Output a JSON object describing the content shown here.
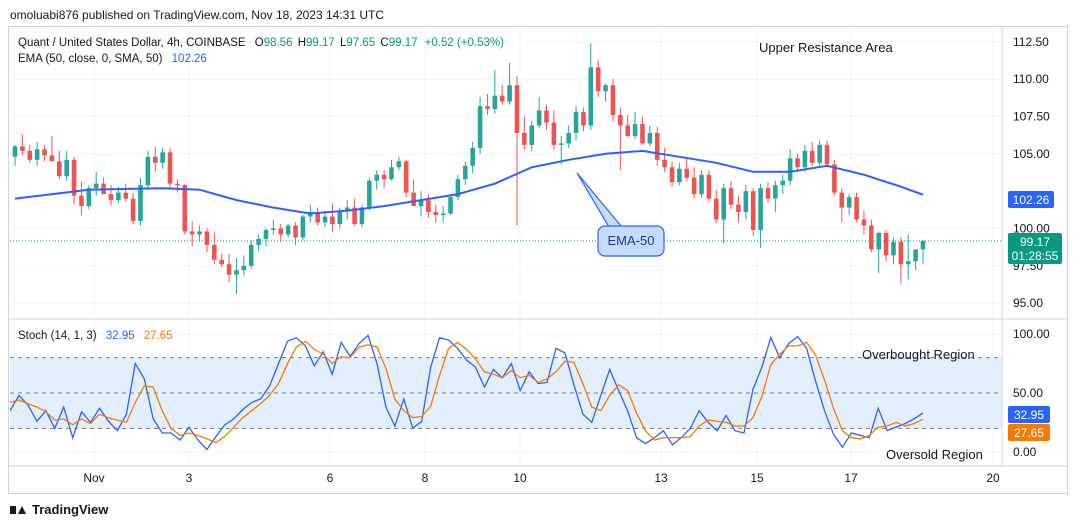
{
  "header": {
    "published": "omoluabi876 published on TradingView.com, Nov 18, 2023 14:31 UTC"
  },
  "footer": {
    "brand": "TradingView"
  },
  "colors": {
    "up": "#26a69a",
    "down": "#ef5350",
    "ema": "#2962ff",
    "stoch_k": "#2962ff",
    "stoch_d": "#f57c00",
    "band": "#e3effd"
  },
  "main_legend": {
    "symbol": "Quant / United States Dollar, 4h, COINBASE",
    "o_label": "O",
    "o": "98.56",
    "h_label": "H",
    "h": "99.17",
    "l_label": "L",
    "l": "97.65",
    "c_label": "C",
    "c": "99.17",
    "change": "+0.52 (+0.53%)",
    "ema_label": "EMA (50, close, 0, SMA, 50)",
    "ema_value": "102.26"
  },
  "stoch_legend": {
    "label": "Stoch (14, 1, 3)",
    "k": "32.95",
    "d": "27.65"
  },
  "annotations": {
    "resistance": "Upper Resistance Area",
    "ema_callout": "EMA-50",
    "overbought": "Overbought Region",
    "oversold": "Oversold Region"
  },
  "price_axis": {
    "ticks": [
      "112.50",
      "110.00",
      "107.50",
      "105.00",
      "100.00",
      "97.50",
      "95.00"
    ]
  },
  "stoch_axis": {
    "ticks": [
      "100.00",
      "50.00",
      "0.00"
    ]
  },
  "price_badges": {
    "ema": "102.26",
    "last": "99.17",
    "countdown": "01:28:55"
  },
  "stoch_badges": {
    "k": "32.95",
    "d": "27.65"
  },
  "x_axis": {
    "labels": [
      "Nov",
      "3",
      "6",
      "8",
      "10",
      "13",
      "15",
      "17",
      "20"
    ]
  },
  "chart_data": [
    {
      "type": "candlestick",
      "title": "Quant / United States Dollar, 4h, COINBASE",
      "ylim": [
        94,
        113.5
      ],
      "candles": [
        [
          104.8,
          105.6,
          104.2,
          105.5
        ],
        [
          105.5,
          106.3,
          104.9,
          105.2
        ],
        [
          105.2,
          105.6,
          104.4,
          104.6
        ],
        [
          104.6,
          105.8,
          104.2,
          105.3
        ],
        [
          105.3,
          105.6,
          104.5,
          104.9
        ],
        [
          104.9,
          106.2,
          104.5,
          104.5
        ],
        [
          104.5,
          105.2,
          103.3,
          103.5
        ],
        [
          103.5,
          105.2,
          103.2,
          104.6
        ],
        [
          104.6,
          104.8,
          101.6,
          102.2
        ],
        [
          102.2,
          103.1,
          100.9,
          101.5
        ],
        [
          101.5,
          102.9,
          101.3,
          102.7
        ],
        [
          102.7,
          103.8,
          102.2,
          103.0
        ],
        [
          103.0,
          103.4,
          102.4,
          102.3
        ],
        [
          102.3,
          102.9,
          101.5,
          101.9
        ],
        [
          101.9,
          102.8,
          101.7,
          102.4
        ],
        [
          102.4,
          103.0,
          101.8,
          102.0
        ],
        [
          102.0,
          102.4,
          100.3,
          100.5
        ],
        [
          100.5,
          103.4,
          100.2,
          102.9
        ],
        [
          102.9,
          105.2,
          102.7,
          104.8
        ],
        [
          104.8,
          105.5,
          103.8,
          104.4
        ],
        [
          104.4,
          105.4,
          104.0,
          105.1
        ],
        [
          105.1,
          105.4,
          102.6,
          103.0
        ],
        [
          103.0,
          103.3,
          102.4,
          102.9
        ],
        [
          102.9,
          103.0,
          99.6,
          99.8
        ],
        [
          99.8,
          100.5,
          98.8,
          99.6
        ],
        [
          99.6,
          100.2,
          99.1,
          99.8
        ],
        [
          99.8,
          100.0,
          98.4,
          98.9
        ],
        [
          98.9,
          99.7,
          97.6,
          97.9
        ],
        [
          97.9,
          98.3,
          97.4,
          97.6
        ],
        [
          97.6,
          98.3,
          96.4,
          96.9
        ],
        [
          96.9,
          98.0,
          95.6,
          97.2
        ],
        [
          97.2,
          98.2,
          96.8,
          97.5
        ],
        [
          97.5,
          99.2,
          97.3,
          98.9
        ],
        [
          98.9,
          99.6,
          98.5,
          99.3
        ],
        [
          99.3,
          100.0,
          98.8,
          99.9
        ],
        [
          99.9,
          100.6,
          99.6,
          100.0
        ],
        [
          100.0,
          100.3,
          99.1,
          99.6
        ],
        [
          99.6,
          100.3,
          99.4,
          100.2
        ],
        [
          100.2,
          100.4,
          98.9,
          99.4
        ],
        [
          99.4,
          100.9,
          99.2,
          100.8
        ],
        [
          100.8,
          101.6,
          100.4,
          101.1
        ],
        [
          101.1,
          101.4,
          100.2,
          100.4
        ],
        [
          100.4,
          101.2,
          100.1,
          100.8
        ],
        [
          100.8,
          101.7,
          99.8,
          100.3
        ],
        [
          100.3,
          101.4,
          100.0,
          101.2
        ],
        [
          101.2,
          101.9,
          100.6,
          101.4
        ],
        [
          101.4,
          102.0,
          100.2,
          100.3
        ],
        [
          100.3,
          101.6,
          100.1,
          101.4
        ],
        [
          101.4,
          103.4,
          101.2,
          103.2
        ],
        [
          103.2,
          103.9,
          102.6,
          103.6
        ],
        [
          103.6,
          103.9,
          102.7,
          103.3
        ],
        [
          103.3,
          104.6,
          103.2,
          104.1
        ],
        [
          104.1,
          104.8,
          103.9,
          104.5
        ],
        [
          104.5,
          104.6,
          102.1,
          102.4
        ],
        [
          102.4,
          103.3,
          101.6,
          101.5
        ],
        [
          101.5,
          102.5,
          100.8,
          101.9
        ],
        [
          101.9,
          102.3,
          100.7,
          101.1
        ],
        [
          101.1,
          101.6,
          100.4,
          100.9
        ],
        [
          100.9,
          101.5,
          100.4,
          101.0
        ],
        [
          101.0,
          102.2,
          100.9,
          102.1
        ],
        [
          102.1,
          103.6,
          101.9,
          103.3
        ],
        [
          103.3,
          104.5,
          102.9,
          104.2
        ],
        [
          104.2,
          105.8,
          103.7,
          105.4
        ],
        [
          105.4,
          108.8,
          105.0,
          108.2
        ],
        [
          108.2,
          109.0,
          107.6,
          108.0
        ],
        [
          108.0,
          110.6,
          107.7,
          108.9
        ],
        [
          108.9,
          109.6,
          108.3,
          108.5
        ],
        [
          108.5,
          111.1,
          108.3,
          109.6
        ],
        [
          109.6,
          110.2,
          100.2,
          106.4
        ],
        [
          106.4,
          107.5,
          105.3,
          105.6
        ],
        [
          105.6,
          107.2,
          105.2,
          106.9
        ],
        [
          106.9,
          108.8,
          106.7,
          107.9
        ],
        [
          107.9,
          108.3,
          106.6,
          107.1
        ],
        [
          107.1,
          107.9,
          105.3,
          105.6
        ],
        [
          105.6,
          106.2,
          104.3,
          105.7
        ],
        [
          105.7,
          106.9,
          105.4,
          106.4
        ],
        [
          106.4,
          108.2,
          105.9,
          107.8
        ],
        [
          107.8,
          108.1,
          106.5,
          106.9
        ],
        [
          106.9,
          112.4,
          106.6,
          110.8
        ],
        [
          110.8,
          111.3,
          108.8,
          109.2
        ],
        [
          109.2,
          109.7,
          108.5,
          109.6
        ],
        [
          109.6,
          110.0,
          107.2,
          107.6
        ],
        [
          107.6,
          108.1,
          103.9,
          106.9
        ],
        [
          106.9,
          107.6,
          106.1,
          106.2
        ],
        [
          106.2,
          107.8,
          106.0,
          107.0
        ],
        [
          107.0,
          107.5,
          105.6,
          105.7
        ],
        [
          105.7,
          106.9,
          105.5,
          106.4
        ],
        [
          106.4,
          106.8,
          104.2,
          104.6
        ],
        [
          104.6,
          105.4,
          103.8,
          104.1
        ],
        [
          104.1,
          104.5,
          102.8,
          103.1
        ],
        [
          103.1,
          104.4,
          102.9,
          104.0
        ],
        [
          104.0,
          104.7,
          103.2,
          103.4
        ],
        [
          103.4,
          104.1,
          102.0,
          102.3
        ],
        [
          102.3,
          103.9,
          102.1,
          103.6
        ],
        [
          103.6,
          103.9,
          101.8,
          102.0
        ],
        [
          102.0,
          102.6,
          100.4,
          100.6
        ],
        [
          100.6,
          103.0,
          99.0,
          102.7
        ],
        [
          102.7,
          103.2,
          101.3,
          101.6
        ],
        [
          101.6,
          102.2,
          100.4,
          101.1
        ],
        [
          101.1,
          102.9,
          100.6,
          102.5
        ],
        [
          102.5,
          102.7,
          99.5,
          99.9
        ],
        [
          99.9,
          103.0,
          98.7,
          102.7
        ],
        [
          102.7,
          103.1,
          101.7,
          102.0
        ],
        [
          102.0,
          103.2,
          101.1,
          102.9
        ],
        [
          102.9,
          103.6,
          102.3,
          103.2
        ],
        [
          103.2,
          105.3,
          102.9,
          104.7
        ],
        [
          104.7,
          105.0,
          103.8,
          104.1
        ],
        [
          104.1,
          105.6,
          103.8,
          105.2
        ],
        [
          105.2,
          105.8,
          104.2,
          104.4
        ],
        [
          104.4,
          105.9,
          104.1,
          105.6
        ],
        [
          105.6,
          105.9,
          104.1,
          104.3
        ],
        [
          104.3,
          104.6,
          102.2,
          102.4
        ],
        [
          102.4,
          102.7,
          100.4,
          101.4
        ],
        [
          101.4,
          102.3,
          100.9,
          102.1
        ],
        [
          102.1,
          102.4,
          100.4,
          100.6
        ],
        [
          100.6,
          101.2,
          99.6,
          100.2
        ],
        [
          100.2,
          100.6,
          98.4,
          98.6
        ],
        [
          98.6,
          99.8,
          97.0,
          99.7
        ],
        [
          99.7,
          99.9,
          97.8,
          98.2
        ],
        [
          98.2,
          99.4,
          97.6,
          99.1
        ],
        [
          99.1,
          99.4,
          96.3,
          97.6
        ],
        [
          97.6,
          99.6,
          96.6,
          97.8
        ],
        [
          97.8,
          98.5,
          97.2,
          98.6
        ],
        [
          98.6,
          99.2,
          97.6,
          99.17
        ]
      ],
      "ema": {
        "name": "EMA (50, close, 0, SMA, 50)",
        "x": [
          0,
          10,
          20,
          25,
          30,
          35,
          40,
          45,
          50,
          55,
          60,
          65,
          70,
          75,
          80,
          85,
          90,
          95,
          100,
          105,
          110,
          115,
          120,
          123
        ],
        "y": [
          102.0,
          102.6,
          102.7,
          102.6,
          101.9,
          101.4,
          101.0,
          101.2,
          101.5,
          101.9,
          102.3,
          103.0,
          104.1,
          104.6,
          105.0,
          105.2,
          104.8,
          104.4,
          103.8,
          103.8,
          104.2,
          103.6,
          102.8,
          102.26
        ]
      },
      "last_price": 99.17,
      "ema_value": 102.26
    },
    {
      "type": "line",
      "title": "Stoch (14, 1, 3)",
      "ylim": [
        -12,
        112
      ],
      "bands": [
        20,
        50,
        80
      ],
      "series": [
        {
          "name": "%K",
          "values": [
            35,
            48,
            40,
            26,
            35,
            20,
            38,
            12,
            34,
            25,
            37,
            26,
            18,
            32,
            75,
            62,
            28,
            16,
            16,
            10,
            21,
            10,
            2,
            13,
            23,
            28,
            36,
            42,
            45,
            56,
            75,
            94,
            97,
            90,
            73,
            85,
            66,
            93,
            81,
            92,
            99,
            75,
            38,
            22,
            45,
            20,
            26,
            72,
            97,
            95,
            88,
            78,
            72,
            55,
            70,
            63,
            75,
            52,
            68,
            58,
            59,
            88,
            84,
            57,
            32,
            25,
            48,
            70,
            52,
            35,
            12,
            7,
            12,
            18,
            6,
            12,
            20,
            35,
            25,
            18,
            31,
            18,
            16,
            53,
            72,
            97,
            80,
            92,
            98,
            88,
            60,
            35,
            15,
            4,
            16,
            14,
            12,
            37,
            18,
            21,
            24,
            28,
            32.95
          ]
        },
        {
          "name": "%D",
          "values": [
            42,
            44,
            41,
            38,
            34,
            27,
            28,
            23,
            28,
            24,
            32,
            29,
            27,
            25,
            42,
            56,
            55,
            35,
            20,
            14,
            16,
            14,
            11,
            8,
            13,
            21,
            29,
            35,
            41,
            48,
            58,
            75,
            89,
            94,
            87,
            83,
            75,
            81,
            80,
            89,
            91,
            89,
            71,
            45,
            35,
            29,
            30,
            39,
            65,
            88,
            93,
            87,
            79,
            68,
            66,
            63,
            69,
            63,
            65,
            59,
            62,
            68,
            77,
            76,
            58,
            38,
            35,
            48,
            57,
            52,
            33,
            18,
            10,
            12,
            12,
            12,
            13,
            22,
            27,
            26,
            25,
            22,
            22,
            29,
            47,
            74,
            83,
            90,
            90,
            93,
            82,
            61,
            37,
            18,
            12,
            11,
            14,
            21,
            22,
            25,
            22,
            24,
            27.65
          ]
        }
      ]
    }
  ]
}
